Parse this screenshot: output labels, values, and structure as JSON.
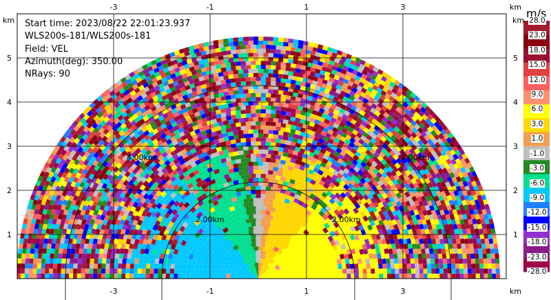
{
  "info": {
    "start_time": "Start time: 2023/08/22 22:01:23.937",
    "instrument": "WLS200s-181/WLS200s-181",
    "field": "Field: VEL",
    "azimuth": "Azimuth(deg): 350.00",
    "nrays": "NRays: 90"
  },
  "axes": {
    "unit": "km",
    "x_ticks": [
      "-3",
      "-1",
      "1",
      "3"
    ],
    "y_ticks": [
      "1",
      "2",
      "3",
      "4",
      "5"
    ]
  },
  "range_rings": {
    "labels": [
      "2.00km",
      "2.00km",
      "4.00km",
      "4.00km"
    ]
  },
  "colorbar": {
    "title": "m/s",
    "labels": [
      "28.0",
      "23.0",
      "18.0",
      "15.0",
      "12.0",
      "9.0",
      "6.0",
      "3.0",
      "1.0",
      "-1.0",
      "-3.0",
      "-6.0",
      "-9.0",
      "-12.0",
      "-15.0",
      "-18.0",
      "-23.0",
      "-28.0"
    ],
    "colors": [
      "#a51b2e",
      "#8b0011",
      "#9a1030",
      "#e04040",
      "#ff6060",
      "#ff9070",
      "#ffff00",
      "#ffd700",
      "#f0a050",
      "#c0c0c0",
      "#228b22",
      "#00e090",
      "#00c8ff",
      "#2080ff",
      "#0000ff",
      "#9030d0",
      "#8b1a8b",
      "#a0004a"
    ]
  }
}
